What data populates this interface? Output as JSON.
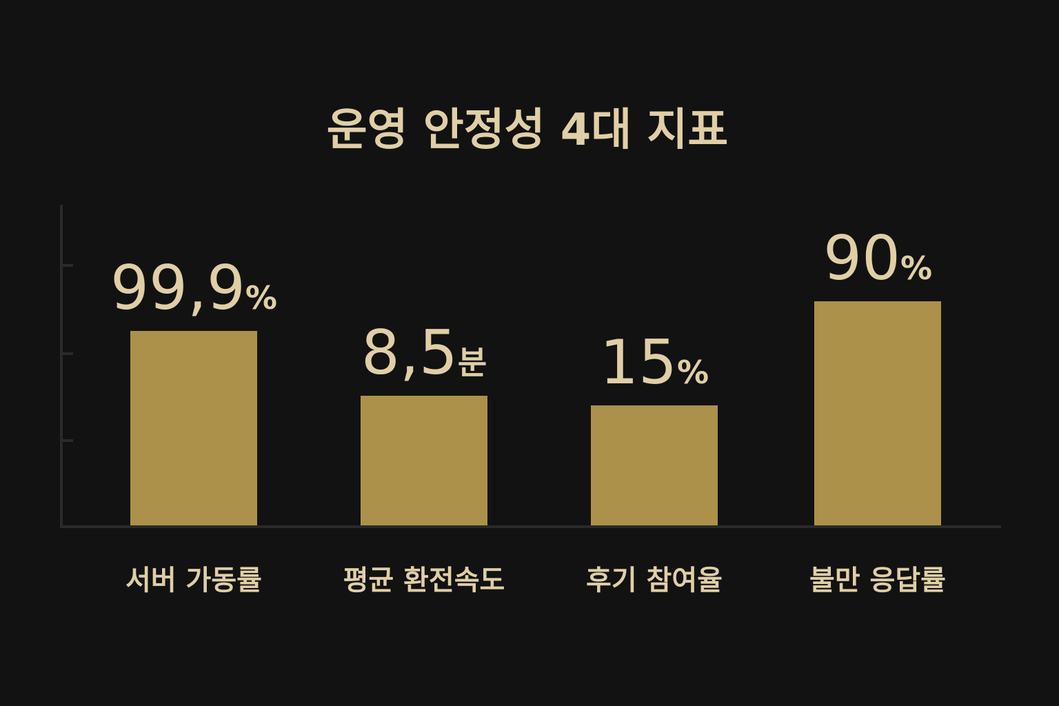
{
  "chart_data": {
    "type": "bar",
    "title": "운영 안정성 4대 지표",
    "categories": [
      "서버 가동률",
      "평균 환전속도",
      "후기 참여율",
      "불만 응답률"
    ],
    "values": [
      99.9,
      8.5,
      15,
      90
    ],
    "value_labels": [
      {
        "number": "99,9",
        "unit": "%"
      },
      {
        "number": "8,5",
        "unit": "분"
      },
      {
        "number": "15",
        "unit": "%"
      },
      {
        "number": "90",
        "unit": "%"
      }
    ],
    "xlabel": "",
    "ylabel": "",
    "grid": false,
    "legend": "none",
    "colors": {
      "background": "#121212",
      "bar": "#ac914b",
      "text": "#e0cfa6",
      "axis": "#2a2a2a"
    }
  }
}
